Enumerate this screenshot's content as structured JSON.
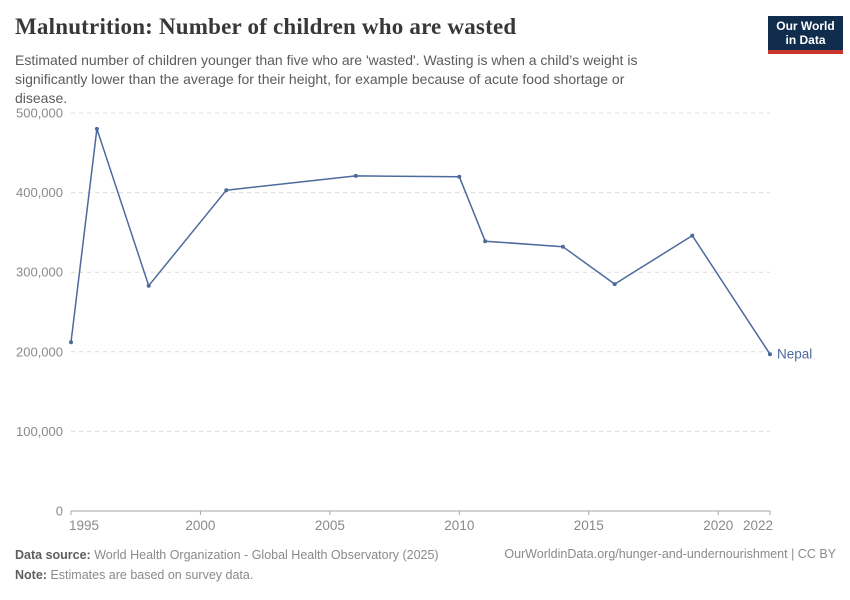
{
  "header": {
    "title": "Malnutrition: Number of children who are wasted",
    "subtitle": "Estimated number of children younger than five who are 'wasted'. Wasting is when a child’s weight is significantly lower than the average for their height, for example because of acute food shortage or disease.",
    "logo_line1": "Our World",
    "logo_line2": "in Data"
  },
  "chart_data": {
    "type": "line",
    "title": "Malnutrition: Number of children who are wasted",
    "x": [
      1995,
      1996,
      1998,
      2001,
      2006,
      2010,
      2011,
      2014,
      2016,
      2019,
      2022
    ],
    "series": [
      {
        "name": "Nepal",
        "color": "#4c6a9c",
        "values": [
          212000,
          480000,
          283000,
          403000,
          421000,
          420000,
          339000,
          332000,
          285000,
          346000,
          197000
        ]
      }
    ],
    "xlabel": "",
    "ylabel": "",
    "xlim": [
      1995,
      2022
    ],
    "ylim": [
      0,
      500000
    ],
    "xticks": [
      1995,
      2000,
      2005,
      2010,
      2015,
      2020,
      2022
    ],
    "yticks": [
      0,
      100000,
      200000,
      300000,
      400000,
      500000
    ],
    "ytick_labels": [
      "0",
      "100,000",
      "200,000",
      "300,000",
      "400,000",
      "500,000"
    ],
    "grid": "horizontal-dashed",
    "legend": "end-of-line-label"
  },
  "footer": {
    "datasource_label": "Data source:",
    "datasource_text": "World Health Organization - Global Health Observatory (2025)",
    "link_text": "OurWorldinData.org/hunger-and-undernourishment | CC BY",
    "note_label": "Note:",
    "note_text": "Estimates are based on survey data."
  },
  "colors": {
    "line": "#4c6a9c",
    "grid": "#dcdcdc",
    "axis": "#a5a5a5",
    "tick_text": "#8a8a8a",
    "title_text": "#383838",
    "subtitle_text": "#5b5b5b",
    "logo_bg": "#102d4e",
    "logo_stripe": "#c8352c"
  }
}
